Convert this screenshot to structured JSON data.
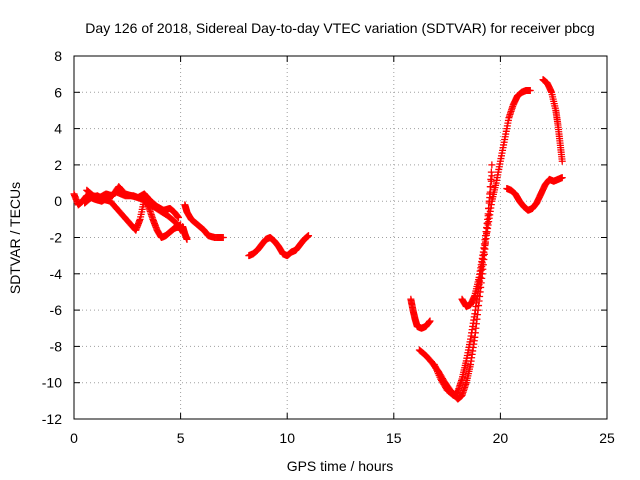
{
  "chart_data": {
    "type": "scatter",
    "title": "Day 126 of 2018, Sidereal Day-to-day VTEC variation (SDTVAR) for receiver pbcg",
    "xlabel": "GPS time / hours",
    "ylabel": "SDTVAR / TECUs",
    "xlim": [
      0,
      25
    ],
    "ylim": [
      -12,
      8
    ],
    "xticks": [
      0,
      5,
      10,
      15,
      20,
      25
    ],
    "yticks": [
      -12,
      -10,
      -8,
      -6,
      -4,
      -2,
      0,
      2,
      4,
      6,
      8
    ],
    "grid": true,
    "marker": "+",
    "color": "#ff0000",
    "series": [
      {
        "name": "arc-1",
        "x": [
          0.0,
          0.2,
          0.4,
          0.6,
          0.8,
          1.0,
          1.3,
          1.6,
          2.0,
          2.4,
          2.8,
          3.2,
          3.6,
          4.0,
          4.4,
          4.8,
          5.0
        ],
        "y": [
          0.4,
          -0.2,
          0.0,
          0.3,
          0.2,
          0.1,
          0.0,
          0.2,
          0.5,
          0.3,
          0.3,
          0.1,
          -0.2,
          -0.5,
          -0.8,
          -1.2,
          -1.6
        ]
      },
      {
        "name": "arc-2",
        "x": [
          0.6,
          0.9,
          1.2,
          1.5,
          1.8,
          2.1,
          2.4,
          2.7,
          3.0,
          3.3,
          3.6,
          3.9,
          4.2,
          4.5,
          4.7,
          4.9
        ],
        "y": [
          0.6,
          0.3,
          0.2,
          0.4,
          0.3,
          0.8,
          0.4,
          0.3,
          0.2,
          0.4,
          0.0,
          -0.3,
          -0.5,
          -0.4,
          -0.6,
          -0.9
        ]
      },
      {
        "name": "arc-3",
        "x": [
          0.5,
          0.8,
          1.1,
          1.4,
          1.7,
          2.0,
          2.3,
          2.6,
          2.9,
          3.1,
          3.3,
          3.5,
          3.7,
          3.9,
          4.1,
          4.3,
          4.5,
          4.7,
          4.9,
          5.0
        ],
        "y": [
          -0.1,
          0.2,
          0.3,
          0.1,
          0.0,
          -0.4,
          -0.8,
          -1.2,
          -1.6,
          -1.0,
          0.1,
          -0.3,
          -1.0,
          -1.6,
          -2.0,
          -1.9,
          -1.7,
          -1.5,
          -1.4,
          -1.3
        ]
      },
      {
        "name": "arc-4",
        "x": [
          5.2,
          5.3,
          5.5,
          5.7,
          5.9,
          6.1,
          6.3,
          6.6,
          7.0
        ],
        "y": [
          -0.2,
          -0.6,
          -1.0,
          -1.2,
          -1.4,
          -1.6,
          -1.9,
          -2.0,
          -2.0
        ]
      },
      {
        "name": "arc-5",
        "x": [
          5.1,
          5.2,
          5.3
        ],
        "y": [
          -1.4,
          -1.8,
          -2.1
        ]
      },
      {
        "name": "arc-6",
        "x": [
          8.2,
          8.4,
          8.6,
          8.8,
          9.0,
          9.2,
          9.4,
          9.6,
          9.8,
          10.0,
          10.2,
          10.4,
          10.6,
          10.8,
          11.0
        ],
        "y": [
          -3.0,
          -2.9,
          -2.7,
          -2.4,
          -2.1,
          -2.0,
          -2.2,
          -2.5,
          -2.9,
          -3.0,
          -2.8,
          -2.7,
          -2.4,
          -2.1,
          -1.9
        ]
      },
      {
        "name": "arc-7",
        "x": [
          15.8,
          15.9,
          16.0,
          16.1,
          16.3,
          16.5,
          16.7
        ],
        "y": [
          -5.4,
          -6.0,
          -6.5,
          -6.9,
          -7.0,
          -6.9,
          -6.6
        ]
      },
      {
        "name": "arc-8",
        "x": [
          16.2,
          16.5,
          16.8,
          17.1,
          17.4,
          17.7,
          18.0,
          18.2,
          18.4,
          18.6,
          18.8,
          19.0,
          19.2,
          19.4,
          19.6
        ],
        "y": [
          -8.2,
          -8.5,
          -8.9,
          -9.4,
          -10.0,
          -10.5,
          -10.9,
          -10.7,
          -10.0,
          -9.0,
          -7.5,
          -5.5,
          -3.5,
          -1.2,
          2.0
        ]
      },
      {
        "name": "arc-9",
        "x": [
          16.9,
          17.2,
          17.5,
          17.8,
          18.0,
          18.2,
          18.4,
          18.6,
          18.8,
          19.0,
          19.2,
          19.4,
          19.6,
          19.8,
          20.0,
          20.2,
          20.4,
          20.6,
          20.8,
          21.0,
          21.2,
          21.4
        ],
        "y": [
          -9.0,
          -9.8,
          -10.4,
          -10.7,
          -10.5,
          -9.8,
          -8.8,
          -7.6,
          -6.2,
          -4.6,
          -3.0,
          -1.5,
          0.0,
          1.0,
          2.2,
          3.4,
          4.6,
          5.3,
          5.8,
          6.0,
          6.1,
          6.1
        ]
      },
      {
        "name": "arc-10",
        "x": [
          18.2,
          18.4,
          18.6,
          18.8,
          19.0,
          19.2,
          19.4,
          19.6
        ],
        "y": [
          -5.4,
          -5.8,
          -5.7,
          -5.2,
          -4.2,
          -2.8,
          -1.0,
          1.4
        ]
      },
      {
        "name": "arc-11",
        "x": [
          20.3,
          20.5,
          20.7,
          20.9,
          21.1,
          21.3,
          21.5,
          21.7,
          21.9,
          22.1,
          22.3,
          22.5,
          22.7,
          22.9
        ],
        "y": [
          0.7,
          0.6,
          0.4,
          0.0,
          -0.3,
          -0.5,
          -0.4,
          -0.1,
          0.4,
          0.9,
          1.2,
          1.1,
          1.2,
          1.3
        ]
      },
      {
        "name": "arc-12",
        "x": [
          22.0,
          22.2,
          22.4,
          22.6,
          22.7,
          22.8,
          22.9
        ],
        "y": [
          6.7,
          6.5,
          6.0,
          5.0,
          4.2,
          3.2,
          2.2
        ]
      }
    ]
  }
}
